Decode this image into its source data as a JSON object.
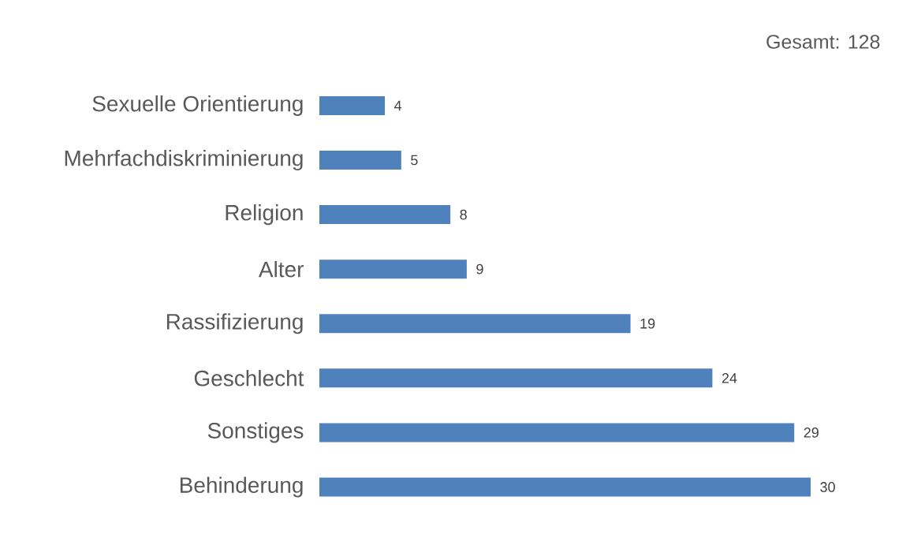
{
  "chart_data": {
    "type": "bar",
    "orientation": "horizontal",
    "categories": [
      "Sexuelle Orientierung",
      "Mehrfachdiskriminierung",
      "Religion",
      "Alter",
      "Rassifizierung",
      "Geschlecht",
      "Sonstiges",
      "Behinderung"
    ],
    "values": [
      4,
      5,
      8,
      9,
      19,
      24,
      29,
      30
    ],
    "color": "#4f81bd",
    "data_labels": true,
    "annotations": [
      "Gesamt: 128"
    ]
  }
}
